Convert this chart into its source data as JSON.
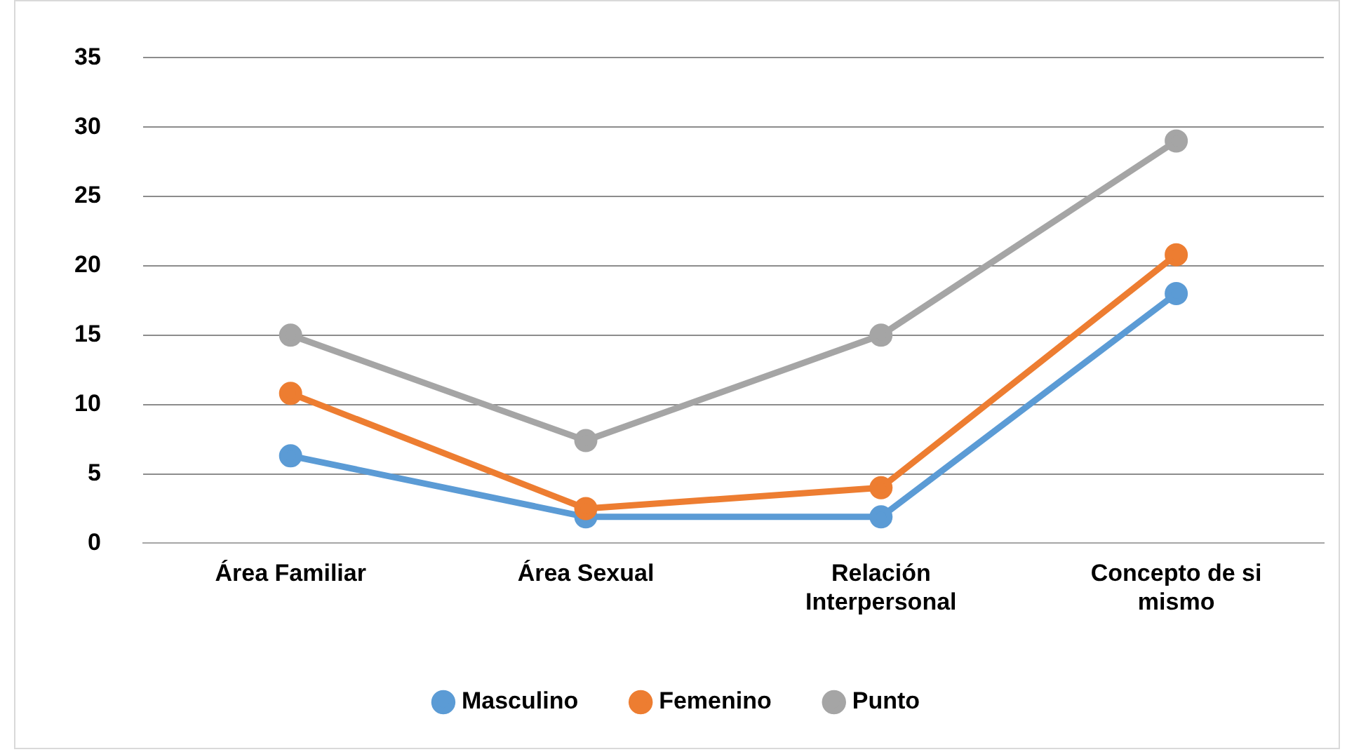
{
  "chart_data": {
    "type": "line",
    "categories": [
      "Área Familiar",
      "Área Sexual",
      "Relación Interpersonal",
      "Concepto de si mismo"
    ],
    "series": [
      {
        "name": "Masculino",
        "color": "#5b9bd5",
        "values": [
          6.3,
          1.9,
          1.9,
          18
        ]
      },
      {
        "name": "Femenino",
        "color": "#ed7d31",
        "values": [
          10.8,
          2.5,
          4,
          20.8
        ]
      },
      {
        "name": "Punto",
        "color": "#a5a5a5",
        "values": [
          15,
          7.4,
          15,
          29
        ]
      }
    ],
    "ylim": [
      0,
      35
    ],
    "yticks": [
      0,
      5,
      10,
      15,
      20,
      25,
      30,
      35
    ],
    "grid": "y",
    "legend": "bottom",
    "marker": "circle",
    "line_style": "solid"
  }
}
